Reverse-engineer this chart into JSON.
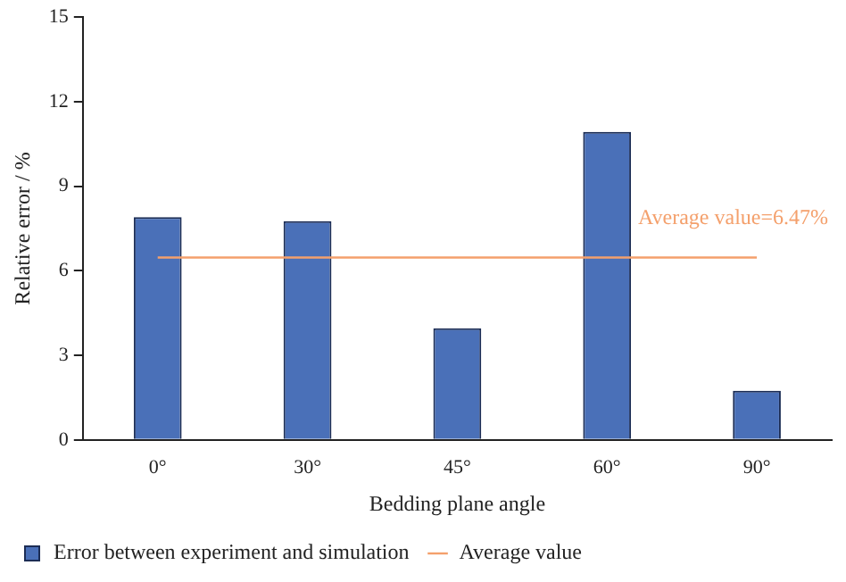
{
  "chart_data": {
    "type": "bar",
    "xlabel": "Bedding plane angle",
    "ylabel": "Relative error / %",
    "categories": [
      "0°",
      "30°",
      "45°",
      "60°",
      "90°"
    ],
    "series": [
      {
        "name": "Error between experiment and simulation",
        "color": "#4a70b8",
        "values": [
          7.9,
          7.76,
          3.96,
          10.93,
          1.74
        ]
      },
      {
        "type": "line",
        "name": "Average value",
        "color": "#f4a06c",
        "values": [
          6.47,
          6.47,
          6.47,
          6.47,
          6.47
        ]
      }
    ],
    "annotations": [
      {
        "text": "Average value=6.47%",
        "y": 6.47
      }
    ],
    "ylim": [
      0,
      15
    ],
    "yticks": [
      0,
      3,
      6,
      9,
      12,
      15
    ],
    "grid": false,
    "legend": "bottom left",
    "marker": "none",
    "line_style": "solid"
  }
}
